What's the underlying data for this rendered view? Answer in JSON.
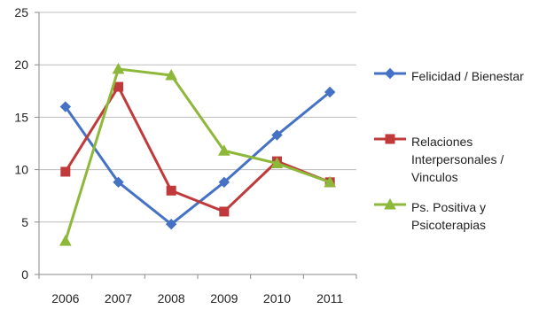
{
  "chart_data": {
    "type": "line",
    "categories": [
      "2006",
      "2007",
      "2008",
      "2009",
      "2010",
      "2011"
    ],
    "ylim": [
      0,
      25
    ],
    "yticks": [
      0,
      5,
      10,
      15,
      20,
      25
    ],
    "grid": true,
    "legend_position": "right",
    "series": [
      {
        "name": "Felicidad / Bienestar",
        "values": [
          16,
          8.8,
          4.8,
          8.8,
          13.3,
          17.4
        ],
        "color": "#4572c4",
        "marker": "diamond"
      },
      {
        "name": "Relaciones Interpersonales / Vinculos",
        "values": [
          9.8,
          17.9,
          8.0,
          6.0,
          10.8,
          8.8
        ],
        "color": "#c0393b",
        "marker": "square"
      },
      {
        "name": "Ps. Positiva y Psicoterapias",
        "values": [
          3.2,
          19.6,
          19.0,
          11.8,
          10.6,
          8.8
        ],
        "color": "#8db83a",
        "marker": "triangle"
      }
    ]
  }
}
